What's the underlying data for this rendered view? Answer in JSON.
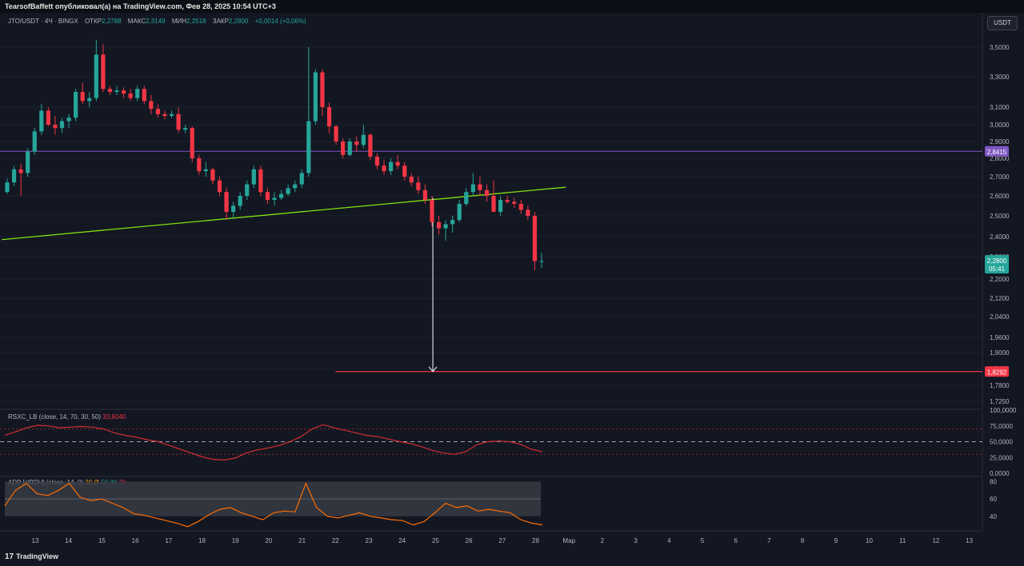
{
  "header": {
    "publisher": "TearsofBaffett опубликовал(а) на TradingView.com, Фев 28, 2025 10:54 UTC+3"
  },
  "legend": {
    "symbol": "JTO/USDT · 4Ч · BINGX",
    "open_label": "ОТКР",
    "open": "2,2788",
    "high_label": "МАКС",
    "high": "2,3149",
    "low_label": "МИН",
    "low": "2,2518",
    "close_label": "ЗАКР",
    "close": "2,2800",
    "change": "+0,0014 (+0,06%)"
  },
  "currency_button": "USDT",
  "colors": {
    "background": "#131722",
    "up": "#26a69a",
    "down": "#f23645",
    "trendline": "#7fe011",
    "resistance": "#7e57c2",
    "target": "#f23645",
    "rsi_line": "#d32f2f",
    "adp_line": "#ff6d00"
  },
  "indicators": {
    "rsi": {
      "label": "RSXC_LB (close, 14, 70, 30, 50)",
      "value": "33,6040"
    },
    "adp": {
      "label": "ADP [clBDH] (close, 14, 0)",
      "p1": "30",
      "p2": "Ø",
      "p3": "50",
      "p4": "30",
      "p5": "70"
    }
  },
  "price_badges": {
    "resistance": "2,8415",
    "current": "2,2800",
    "countdown": "05:41",
    "target": "1,8292"
  },
  "footer": {
    "brand": "TradingView"
  },
  "chart_data": {
    "type": "candlestick",
    "symbol": "JTO/USDT",
    "timeframe": "4Ч",
    "exchange": "BINGX",
    "y_tick_labels": [
      "3,5000",
      "3,3000",
      "3,1000",
      "3,0000",
      "2,9000",
      "2,8000",
      "2,7000",
      "2,6000",
      "2,5000",
      "2,4000",
      "2,3000",
      "2,2000",
      "2,1200",
      "2,0400",
      "1,9600",
      "1,9000",
      "1,8400",
      "1,7800",
      "1,7250"
    ],
    "y_ticks": [
      3.5,
      3.3,
      3.1,
      3.0,
      2.9,
      2.8,
      2.7,
      2.6,
      2.5,
      2.4,
      2.3,
      2.2,
      2.12,
      2.04,
      1.96,
      1.9,
      1.84,
      1.78,
      1.725
    ],
    "x_tick_labels": [
      "13",
      "14",
      "15",
      "16",
      "17",
      "18",
      "19",
      "20",
      "21",
      "22",
      "23",
      "24",
      "25",
      "26",
      "27",
      "28",
      "Мар",
      "2",
      "3",
      "4",
      "5",
      "6",
      "7",
      "8",
      "9",
      "10",
      "11",
      "12",
      "13"
    ],
    "horizontal_levels": [
      {
        "price": 2.8415,
        "label": "2,8415",
        "color": "#7e57c2"
      },
      {
        "price": 1.8292,
        "label": "1,8292",
        "color": "#f23645"
      }
    ],
    "trendline": {
      "from": {
        "x_day": 12.0,
        "price": 2.385
      },
      "to": {
        "x_day": 28.9,
        "price": 2.645
      }
    },
    "arrow": {
      "x_day": 24.92,
      "from_price": 2.59,
      "to_price": 1.8292
    },
    "candles_ohlc": [
      [
        2.62,
        2.69,
        2.61,
        2.67
      ],
      [
        2.67,
        2.76,
        2.65,
        2.74
      ],
      [
        2.74,
        2.77,
        2.6,
        2.72
      ],
      [
        2.72,
        2.86,
        2.7,
        2.84
      ],
      [
        2.84,
        2.98,
        2.82,
        2.96
      ],
      [
        2.96,
        3.12,
        2.94,
        3.08
      ],
      [
        3.08,
        3.1,
        2.99,
        3.0
      ],
      [
        3.0,
        3.05,
        2.94,
        2.98
      ],
      [
        2.98,
        3.04,
        2.95,
        3.02
      ],
      [
        3.02,
        3.06,
        2.98,
        3.04
      ],
      [
        3.04,
        3.22,
        3.02,
        3.2
      ],
      [
        3.2,
        3.26,
        3.12,
        3.14
      ],
      [
        3.14,
        3.2,
        3.1,
        3.16
      ],
      [
        3.16,
        3.55,
        3.14,
        3.45
      ],
      [
        3.45,
        3.52,
        3.2,
        3.22
      ],
      [
        3.22,
        3.24,
        3.18,
        3.2
      ],
      [
        3.2,
        3.24,
        3.18,
        3.21
      ],
      [
        3.21,
        3.23,
        3.16,
        3.19
      ],
      [
        3.19,
        3.22,
        3.14,
        3.16
      ],
      [
        3.16,
        3.24,
        3.14,
        3.22
      ],
      [
        3.22,
        3.24,
        3.12,
        3.14
      ],
      [
        3.14,
        3.18,
        3.06,
        3.09
      ],
      [
        3.09,
        3.12,
        3.04,
        3.06
      ],
      [
        3.06,
        3.08,
        3.03,
        3.05
      ],
      [
        3.05,
        3.08,
        3.04,
        3.06
      ],
      [
        3.06,
        3.1,
        2.95,
        2.97
      ],
      [
        2.97,
        3.0,
        2.95,
        2.98
      ],
      [
        2.98,
        2.99,
        2.78,
        2.8
      ],
      [
        2.8,
        2.82,
        2.71,
        2.73
      ],
      [
        2.73,
        2.78,
        2.7,
        2.74
      ],
      [
        2.74,
        2.75,
        2.66,
        2.68
      ],
      [
        2.68,
        2.7,
        2.6,
        2.62
      ],
      [
        2.62,
        2.64,
        2.48,
        2.52
      ],
      [
        2.52,
        2.57,
        2.49,
        2.55
      ],
      [
        2.55,
        2.62,
        2.53,
        2.6
      ],
      [
        2.6,
        2.68,
        2.58,
        2.66
      ],
      [
        2.66,
        2.76,
        2.64,
        2.74
      ],
      [
        2.74,
        2.76,
        2.6,
        2.62
      ],
      [
        2.62,
        2.64,
        2.56,
        2.58
      ],
      [
        2.58,
        2.62,
        2.55,
        2.59
      ],
      [
        2.59,
        2.63,
        2.58,
        2.61
      ],
      [
        2.61,
        2.66,
        2.6,
        2.64
      ],
      [
        2.64,
        2.68,
        2.62,
        2.66
      ],
      [
        2.66,
        2.74,
        2.64,
        2.72
      ],
      [
        2.72,
        3.5,
        2.7,
        3.02
      ],
      [
        3.02,
        3.35,
        3.0,
        3.33
      ],
      [
        3.33,
        3.35,
        3.05,
        3.1
      ],
      [
        3.1,
        3.13,
        2.95,
        2.99
      ],
      [
        2.99,
        3.0,
        2.88,
        2.9
      ],
      [
        2.9,
        2.92,
        2.8,
        2.82
      ],
      [
        2.82,
        2.92,
        2.81,
        2.9
      ],
      [
        2.9,
        2.93,
        2.84,
        2.88
      ],
      [
        2.88,
        3.0,
        2.86,
        2.94
      ],
      [
        2.94,
        2.95,
        2.79,
        2.81
      ],
      [
        2.81,
        2.83,
        2.74,
        2.76
      ],
      [
        2.76,
        2.79,
        2.71,
        2.73
      ],
      [
        2.73,
        2.8,
        2.71,
        2.78
      ],
      [
        2.78,
        2.82,
        2.74,
        2.76
      ],
      [
        2.76,
        2.78,
        2.68,
        2.7
      ],
      [
        2.7,
        2.72,
        2.65,
        2.67
      ],
      [
        2.67,
        2.7,
        2.61,
        2.63
      ],
      [
        2.63,
        2.66,
        2.56,
        2.58
      ],
      [
        2.58,
        2.6,
        2.45,
        2.47
      ],
      [
        2.47,
        2.5,
        2.41,
        2.44
      ],
      [
        2.44,
        2.48,
        2.38,
        2.46
      ],
      [
        2.46,
        2.5,
        2.42,
        2.48
      ],
      [
        2.48,
        2.58,
        2.47,
        2.56
      ],
      [
        2.56,
        2.64,
        2.55,
        2.62
      ],
      [
        2.62,
        2.72,
        2.6,
        2.66
      ],
      [
        2.66,
        2.7,
        2.6,
        2.63
      ],
      [
        2.63,
        2.66,
        2.57,
        2.6
      ],
      [
        2.6,
        2.68,
        2.55,
        2.52
      ],
      [
        2.52,
        2.6,
        2.5,
        2.58
      ],
      [
        2.58,
        2.6,
        2.56,
        2.57
      ],
      [
        2.57,
        2.59,
        2.54,
        2.56
      ],
      [
        2.56,
        2.58,
        2.51,
        2.53
      ],
      [
        2.53,
        2.55,
        2.48,
        2.5
      ],
      [
        2.5,
        2.52,
        2.24,
        2.28
      ],
      [
        2.28,
        2.32,
        2.25,
        2.28
      ]
    ],
    "rsi": {
      "ylim": [
        0,
        100
      ],
      "y_tick_labels": [
        "100,0000",
        "75,0000",
        "50,0000",
        "25,0000",
        "0,0000"
      ],
      "y_ticks": [
        100,
        75,
        50,
        25,
        0
      ],
      "overbought": 70,
      "oversold": 30,
      "mid": 50,
      "values": [
        60,
        66,
        72,
        76,
        75,
        72,
        73,
        74,
        73,
        70,
        64,
        60,
        57,
        53,
        50,
        44,
        38,
        32,
        26,
        22,
        21,
        24,
        32,
        37,
        40,
        44,
        50,
        58,
        70,
        77,
        72,
        68,
        64,
        60,
        58,
        54,
        50,
        47,
        42,
        36,
        32,
        30,
        34,
        45,
        50,
        51,
        50,
        46,
        38,
        34
      ]
    },
    "adp": {
      "y_tick_labels": [
        "80",
        "60",
        "40"
      ],
      "y_ticks": [
        80,
        60,
        40
      ],
      "band": [
        40,
        80
      ],
      "values": [
        52,
        70,
        78,
        66,
        64,
        70,
        78,
        62,
        58,
        60,
        55,
        50,
        43,
        41,
        38,
        35,
        32,
        28,
        34,
        42,
        48,
        50,
        44,
        40,
        36,
        44,
        46,
        45,
        78,
        50,
        40,
        38,
        41,
        44,
        40,
        38,
        36,
        35,
        30,
        34,
        44,
        55,
        50,
        52,
        46,
        48,
        46,
        44,
        36,
        32,
        30
      ]
    }
  }
}
